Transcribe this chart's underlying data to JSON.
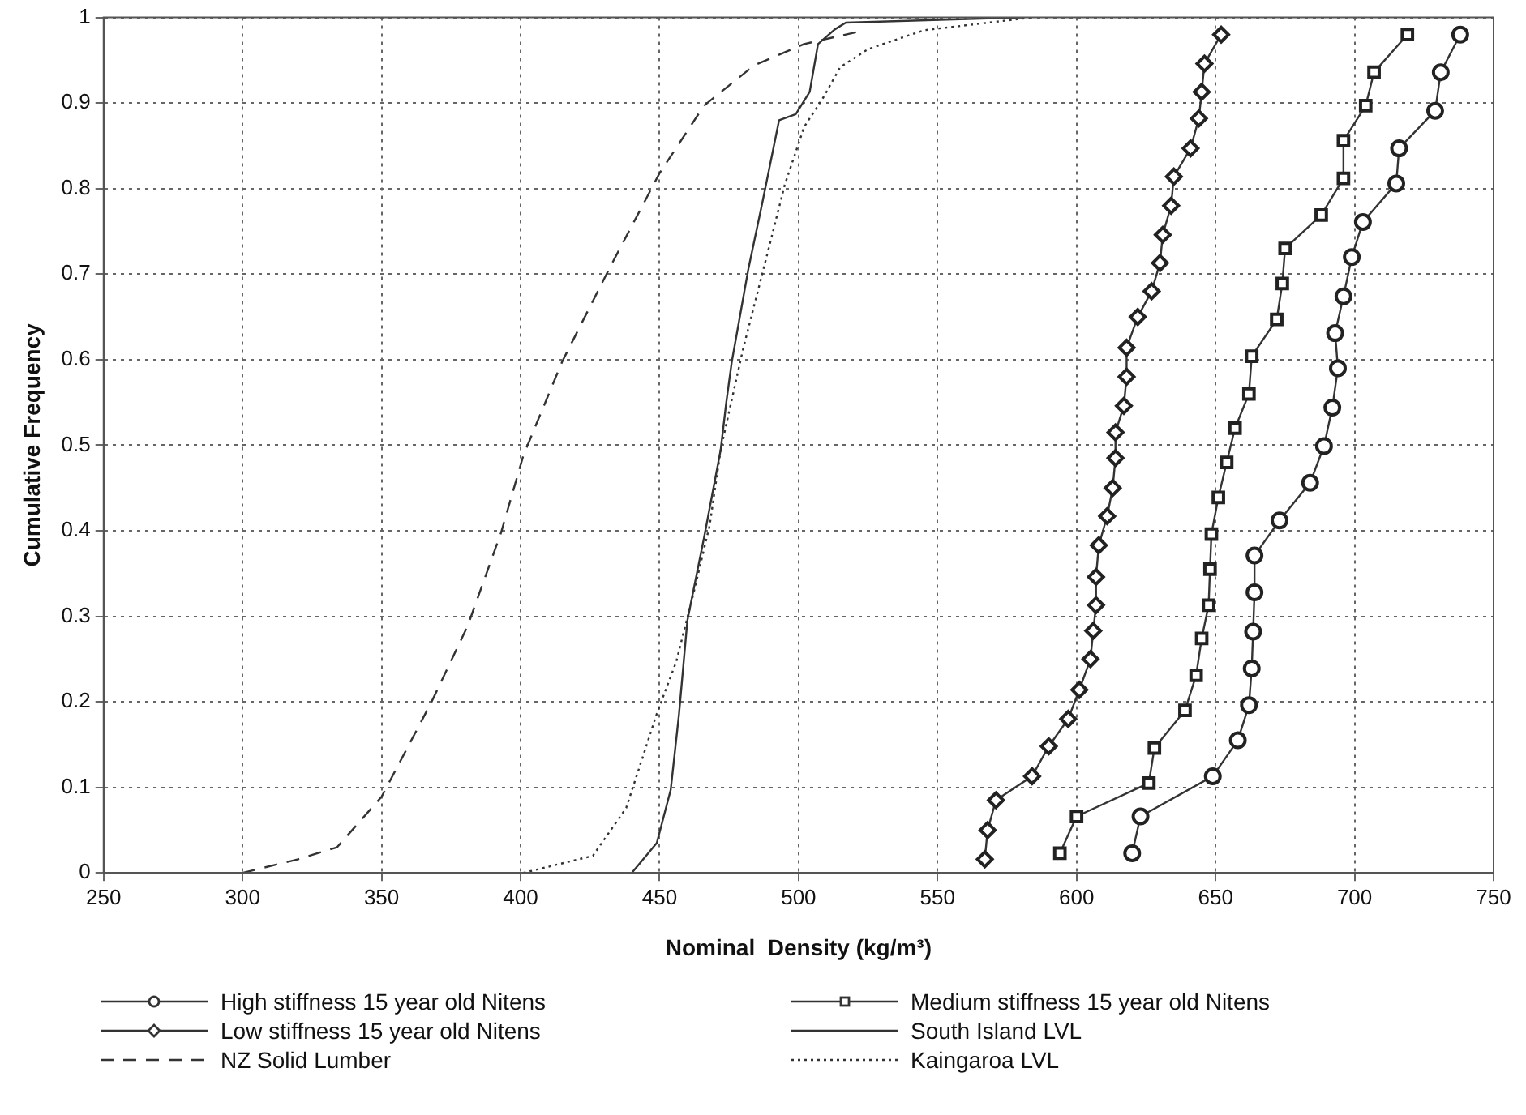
{
  "chart_data": {
    "type": "line",
    "xlabel": "Nominal  Density (kg/m³)",
    "ylabel": "Cumulative Frequency",
    "xlim": [
      250,
      750
    ],
    "xticks": [
      250,
      300,
      350,
      400,
      450,
      500,
      550,
      600,
      650,
      700,
      750
    ],
    "ylim": [
      0,
      1
    ],
    "yticks": [
      0,
      0.1,
      0.2,
      0.3,
      0.4,
      0.5,
      0.6,
      0.7,
      0.8,
      0.9,
      1
    ],
    "grid": true,
    "legend": "bottom",
    "series": [
      {
        "name": "High stiffness 15 year old Nitens",
        "color": "#333333",
        "marker": "circle",
        "line_style": "solid",
        "x": [
          620,
          623,
          649,
          658,
          662,
          663,
          663.5,
          664,
          664,
          673,
          684,
          689,
          692,
          694,
          693,
          696,
          699,
          703,
          715,
          716,
          729,
          731,
          738
        ],
        "values": [
          0.023,
          0.066,
          0.113,
          0.155,
          0.196,
          0.239,
          0.282,
          0.328,
          0.371,
          0.412,
          0.456,
          0.499,
          0.544,
          0.59,
          0.631,
          0.674,
          0.72,
          0.761,
          0.806,
          0.847,
          0.891,
          0.936,
          0.98
        ]
      },
      {
        "name": "Medium stiffness 15 year old Nitens",
        "color": "#333333",
        "marker": "square",
        "line_style": "solid",
        "x": [
          594,
          600,
          626,
          628,
          639,
          643,
          645,
          647.5,
          648,
          648.5,
          651,
          654,
          657,
          662,
          663,
          672,
          674,
          675,
          688,
          696,
          696,
          704,
          707,
          719
        ],
        "values": [
          0.023,
          0.066,
          0.105,
          0.146,
          0.19,
          0.231,
          0.274,
          0.313,
          0.355,
          0.396,
          0.439,
          0.48,
          0.52,
          0.56,
          0.604,
          0.647,
          0.689,
          0.73,
          0.769,
          0.812,
          0.856,
          0.897,
          0.936,
          0.98
        ]
      },
      {
        "name": "Low stiffness 15 year old Nitens",
        "color": "#333333",
        "marker": "diamond",
        "line_style": "solid",
        "x": [
          567,
          568,
          571,
          584,
          590,
          597,
          601,
          605,
          606,
          607,
          607,
          608,
          611,
          613,
          614,
          614,
          617,
          618,
          618,
          622,
          627,
          630,
          631,
          634,
          635,
          641,
          644,
          645,
          646,
          652
        ],
        "values": [
          0.016,
          0.05,
          0.085,
          0.113,
          0.148,
          0.18,
          0.214,
          0.25,
          0.283,
          0.313,
          0.346,
          0.383,
          0.417,
          0.45,
          0.485,
          0.515,
          0.546,
          0.58,
          0.614,
          0.65,
          0.68,
          0.713,
          0.746,
          0.78,
          0.814,
          0.847,
          0.882,
          0.913,
          0.946,
          0.98
        ]
      },
      {
        "name": "South Island LVL",
        "color": "#333333",
        "marker": "none",
        "line_style": "solid",
        "x": [
          440,
          449,
          454,
          457,
          460,
          466,
          472,
          474,
          476,
          482,
          487,
          493,
          499,
          504,
          507,
          513,
          517,
          580
        ],
        "values": [
          0,
          0.035,
          0.097,
          0.186,
          0.295,
          0.392,
          0.495,
          0.55,
          0.598,
          0.707,
          0.784,
          0.88,
          0.887,
          0.913,
          0.969,
          0.986,
          0.994,
          1
        ]
      },
      {
        "name": "NZ Solid Lumber",
        "color": "#333333",
        "marker": "none",
        "line_style": "dashed",
        "x": [
          300,
          320,
          334,
          350,
          368,
          381,
          393,
          401,
          415,
          432,
          450,
          466,
          484,
          502,
          521
        ],
        "values": [
          0,
          0.016,
          0.03,
          0.089,
          0.2,
          0.289,
          0.398,
          0.488,
          0.598,
          0.707,
          0.818,
          0.897,
          0.944,
          0.969,
          0.983
        ]
      },
      {
        "name": "Kaingaroa LVL",
        "color": "#333333",
        "marker": "none",
        "line_style": "dotted",
        "x": [
          401,
          426,
          438,
          449,
          456,
          462,
          468,
          472,
          480,
          487,
          495,
          502,
          509,
          515,
          525,
          545,
          584
        ],
        "values": [
          0,
          0.02,
          0.076,
          0.186,
          0.247,
          0.324,
          0.406,
          0.495,
          0.612,
          0.701,
          0.804,
          0.872,
          0.907,
          0.942,
          0.963,
          0.985,
          1
        ]
      }
    ]
  }
}
